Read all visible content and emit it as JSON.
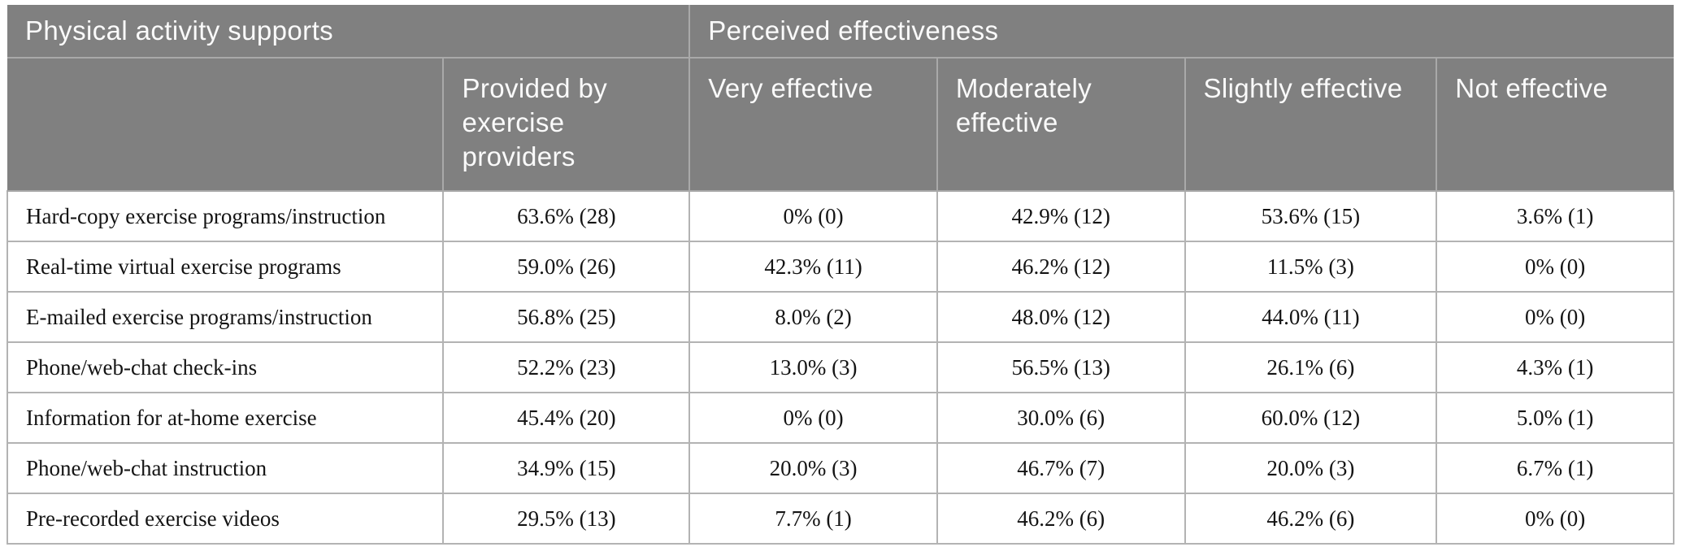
{
  "colors": {
    "header_bg": "#808080",
    "header_text": "#fafafa",
    "header_divider": "#a9a9a9",
    "body_border": "#b3b3b3",
    "body_text": "#141414"
  },
  "chart_data": {
    "type": "table",
    "column_groups": [
      {
        "label": "Physical activity supports",
        "span": 2
      },
      {
        "label": "Perceived effectiveness",
        "span": 4
      }
    ],
    "columns": [
      "",
      "Provided by exercise providers",
      "Very effective",
      "Moderately effective",
      "Slightly effective",
      "Not effective"
    ],
    "rows": [
      {
        "label": "Hard-copy exercise programs/instruction",
        "cells": [
          "63.6% (28)",
          "0% (0)",
          "42.9% (12)",
          "53.6% (15)",
          "3.6% (1)"
        ]
      },
      {
        "label": "Real-time virtual exercise programs",
        "cells": [
          "59.0% (26)",
          "42.3% (11)",
          "46.2% (12)",
          "11.5% (3)",
          "0% (0)"
        ]
      },
      {
        "label": "E-mailed exercise programs/instruction",
        "cells": [
          "56.8% (25)",
          "8.0% (2)",
          "48.0% (12)",
          "44.0% (11)",
          "0% (0)"
        ]
      },
      {
        "label": "Phone/web-chat check-ins",
        "cells": [
          "52.2% (23)",
          "13.0% (3)",
          "56.5% (13)",
          "26.1% (6)",
          "4.3% (1)"
        ]
      },
      {
        "label": "Information for at-home exercise",
        "cells": [
          "45.4% (20)",
          "0% (0)",
          "30.0% (6)",
          "60.0% (12)",
          "5.0% (1)"
        ]
      },
      {
        "label": "Phone/web-chat instruction",
        "cells": [
          "34.9% (15)",
          "20.0% (3)",
          "46.7% (7)",
          "20.0% (3)",
          "6.7% (1)"
        ]
      },
      {
        "label": "Pre-recorded exercise videos",
        "cells": [
          "29.5% (13)",
          "7.7% (1)",
          "46.2% (6)",
          "46.2% (6)",
          "0% (0)"
        ]
      }
    ]
  }
}
